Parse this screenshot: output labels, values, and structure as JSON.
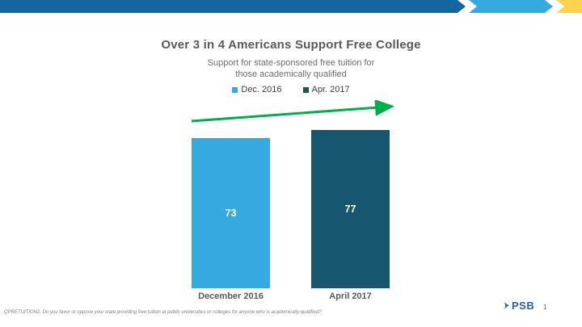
{
  "slide": {
    "title": "Over 3 in 4 Americans Support Free College",
    "subtitle": "Support for state-sponsored free tuition for\nthose academically qualified",
    "footnote": "QPRETUITION2. Do you favor or oppose your state providing free tuition at public universities or colleges for anyone who is academically qualified?",
    "page_number": "1",
    "logo_text": "PSB"
  },
  "chart_data": {
    "type": "bar",
    "title": "Over 3 in 4 Americans Support Free College",
    "subtitle": "Support for state-sponsored free tuition for those academically qualified",
    "categories": [
      "December 2016",
      "April 2017"
    ],
    "values": [
      73,
      77
    ],
    "bar_colors": [
      "#36A9E1",
      "#17566F"
    ],
    "ylim": [
      0,
      100
    ],
    "grid": false,
    "value_labels_shown": true,
    "legend_position": "top",
    "legend": [
      {
        "label": "Dec. 2016",
        "color": "#36A9E1"
      },
      {
        "label": "Apr. 2017",
        "color": "#1D4F66"
      }
    ],
    "annotation": "green upward trend arrow spanning from first bar to second bar"
  },
  "theme": {
    "topbar_dark": "#14669E",
    "topbar_light": "#36A9E1",
    "topbar_yellow": "#FFD34D",
    "arrow_green": "#00AE4D",
    "psb_blue": "#2D5DA9",
    "title_gray": "#595959"
  }
}
